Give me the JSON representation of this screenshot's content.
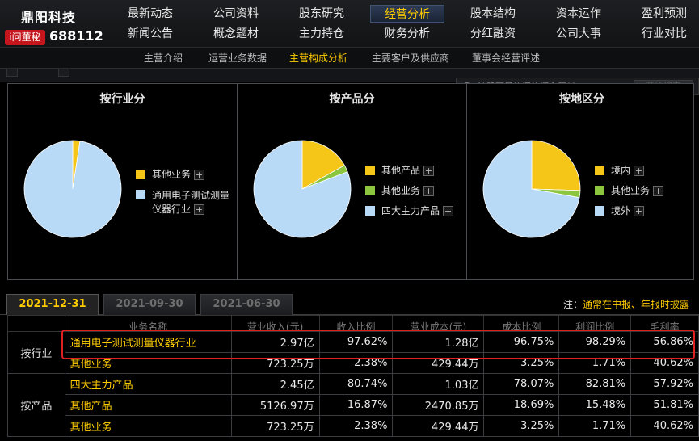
{
  "header": {
    "company_name": "鼎阳科技",
    "badge": "i问董秘",
    "stock_code": "688112"
  },
  "main_nav": [
    {
      "label": "最新动态"
    },
    {
      "label": "公司资料"
    },
    {
      "label": "股东研究"
    },
    {
      "label": "经营分析"
    },
    {
      "label": "股本结构"
    },
    {
      "label": "资本运作"
    },
    {
      "label": "盈利预测"
    },
    {
      "label": "新闻公告"
    },
    {
      "label": "概念题材"
    },
    {
      "label": "主力持仓"
    },
    {
      "label": "财务分析"
    },
    {
      "label": "分红融资"
    },
    {
      "label": "公司大事"
    },
    {
      "label": "行业对比"
    }
  ],
  "main_nav_active": "经营分析",
  "sub_nav": [
    {
      "label": "主营介绍"
    },
    {
      "label": "运营业务数据"
    },
    {
      "label": "主营构成分析"
    },
    {
      "label": "主要客户及供应商"
    },
    {
      "label": "董事会经营评述"
    }
  ],
  "sub_nav_active": "主营构成分析",
  "concept_search": {
    "placeholder": "该股票最热门的概念题材",
    "button": "开始搜索"
  },
  "charts": {
    "industry": {
      "title": "按行业分",
      "legend": [
        {
          "label": "其他业务",
          "color": "#f5c518",
          "share": 2.38
        },
        {
          "label": "通用电子测试测量仪器行业",
          "color": "#b8daf7",
          "share": 97.62
        }
      ]
    },
    "product": {
      "title": "按产品分",
      "legend": [
        {
          "label": "其他产品",
          "color": "#f5c518",
          "share": 16.87
        },
        {
          "label": "其他业务",
          "color": "#8cc63f",
          "share": 2.38
        },
        {
          "label": "四大主力产品",
          "color": "#b8daf7",
          "share": 80.74
        }
      ]
    },
    "region": {
      "title": "按地区分",
      "legend": [
        {
          "label": "境内",
          "color": "#f5c518",
          "share": 25.5
        },
        {
          "label": "其他业务",
          "color": "#8cc63f",
          "share": 2.38
        },
        {
          "label": "境外",
          "color": "#b8daf7",
          "share": 72.1
        }
      ]
    }
  },
  "date_tabs": [
    {
      "label": "2021-12-31"
    },
    {
      "label": "2021-09-30"
    },
    {
      "label": "2021-06-30"
    }
  ],
  "date_tab_active": "2021-12-31",
  "note": {
    "prefix": "注：",
    "text": "通常在中报、年报时披露"
  },
  "table": {
    "headers": [
      "业务名称",
      "营业收入(元)",
      "收入比例",
      "营业成本(元)",
      "成本比例",
      "利润比例",
      "毛利率"
    ],
    "groups": [
      {
        "group": "按行业",
        "rows": [
          [
            "通用电子测试测量仪器行业",
            "2.97亿",
            "97.62%",
            "1.28亿",
            "96.75%",
            "98.29%",
            "56.86%"
          ],
          [
            "其他业务",
            "723.25万",
            "2.38%",
            "429.44万",
            "3.25%",
            "1.71%",
            "40.62%"
          ]
        ]
      },
      {
        "group": "按产品",
        "rows": [
          [
            "四大主力产品",
            "2.45亿",
            "80.74%",
            "1.03亿",
            "78.07%",
            "82.81%",
            "57.92%"
          ],
          [
            "其他产品",
            "5126.97万",
            "16.87%",
            "2470.85万",
            "18.69%",
            "15.48%",
            "51.81%"
          ],
          [
            "其他业务",
            "723.25万",
            "2.38%",
            "429.44万",
            "3.25%",
            "1.71%",
            "40.62%"
          ]
        ]
      }
    ]
  }
}
